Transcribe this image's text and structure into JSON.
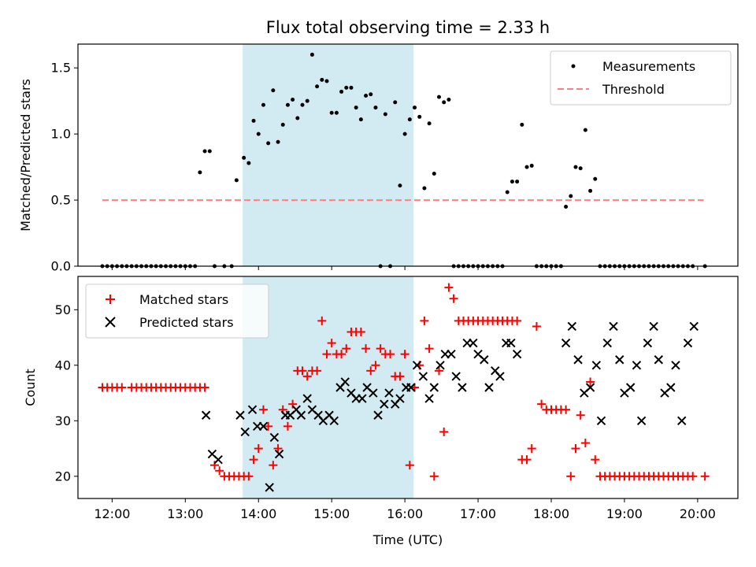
{
  "chart_data": {
    "title": "Flux total observing time = 2.33 h",
    "xlabel": "Time (UTC)",
    "x_unit": "hours UTC",
    "xlim": [
      "11:32",
      "20:33"
    ],
    "xtick_labels": [
      "12:00",
      "13:00",
      "14:00",
      "15:00",
      "16:00",
      "17:00",
      "18:00",
      "19:00",
      "20:00"
    ],
    "shaded_interval": [
      "13:47",
      "16:07"
    ],
    "shade_color": "#add8e6",
    "panels": [
      {
        "type": "scatter",
        "ylabel": "Matched/Predicted stars",
        "ylim": [
          0,
          1.68
        ],
        "ytick_labels": [
          "0.0",
          "0.5",
          "1.0",
          "1.5"
        ],
        "legend_position": "upper right",
        "threshold": {
          "name": "Threshold",
          "value": 0.5,
          "x_range": [
            "11:52",
            "20:05"
          ],
          "color": "#ff8080",
          "style": "dashed"
        },
        "series": [
          {
            "name": "Measurements",
            "color": "#000000",
            "marker": "dot",
            "x": [
              "11:52",
              "11:56",
              "12:00",
              "12:04",
              "12:08",
              "12:12",
              "12:16",
              "12:20",
              "12:24",
              "12:28",
              "12:32",
              "12:36",
              "12:40",
              "12:44",
              "12:48",
              "12:52",
              "12:56",
              "13:00",
              "13:04",
              "13:08",
              "13:12",
              "13:16",
              "13:20",
              "13:24",
              "13:32",
              "13:38",
              "13:42",
              "13:48",
              "13:52",
              "13:56",
              "14:00",
              "14:04",
              "14:08",
              "14:12",
              "14:16",
              "14:20",
              "14:24",
              "14:28",
              "14:32",
              "14:36",
              "14:40",
              "14:44",
              "14:48",
              "14:52",
              "14:56",
              "15:00",
              "15:04",
              "15:08",
              "15:12",
              "15:16",
              "15:20",
              "15:24",
              "15:28",
              "15:32",
              "15:36",
              "15:40",
              "15:44",
              "15:48",
              "15:52",
              "15:56",
              "16:00",
              "16:04",
              "16:08",
              "16:12",
              "16:16",
              "16:20",
              "16:24",
              "16:28",
              "16:32",
              "16:36",
              "16:40",
              "16:44",
              "16:48",
              "16:52",
              "16:56",
              "17:00",
              "17:04",
              "17:08",
              "17:12",
              "17:16",
              "17:20",
              "17:24",
              "17:28",
              "17:32",
              "17:36",
              "17:40",
              "17:44",
              "17:48",
              "17:52",
              "17:56",
              "18:00",
              "18:04",
              "18:08",
              "18:12",
              "18:16",
              "18:20",
              "18:24",
              "18:28",
              "18:32",
              "18:36",
              "18:40",
              "18:44",
              "18:48",
              "18:52",
              "18:56",
              "19:00",
              "19:04",
              "19:08",
              "19:12",
              "19:16",
              "19:20",
              "19:24",
              "19:28",
              "19:32",
              "19:36",
              "19:40",
              "19:44",
              "19:48",
              "19:52",
              "19:56",
              "20:06"
            ],
            "y": [
              0,
              0,
              0,
              0,
              0,
              0,
              0,
              0,
              0,
              0,
              0,
              0,
              0,
              0,
              0,
              0,
              0,
              0,
              0,
              0,
              0.71,
              0.87,
              0.87,
              0,
              0,
              0,
              0.65,
              0.82,
              0.78,
              1.1,
              1.0,
              1.22,
              0.93,
              1.33,
              0.94,
              1.07,
              1.22,
              1.26,
              1.12,
              1.22,
              1.25,
              1.6,
              1.36,
              1.41,
              1.4,
              1.16,
              1.16,
              1.32,
              1.35,
              1.35,
              1.2,
              1.11,
              1.29,
              1.3,
              1.2,
              0,
              1.15,
              0,
              1.24,
              0.61,
              1.0,
              1.11,
              1.2,
              1.13,
              0.59,
              1.08,
              0.7,
              1.28,
              1.24,
              1.26,
              0,
              0,
              0,
              0,
              0,
              0,
              0,
              0,
              0,
              0,
              0,
              0.56,
              0.64,
              0.64,
              1.07,
              0.75,
              0.76,
              0,
              0,
              0,
              0,
              0,
              0,
              0.45,
              0.53,
              0.75,
              0.74,
              1.03,
              0.57,
              0.66,
              0,
              0,
              0,
              0,
              0,
              0,
              0,
              0,
              0,
              0,
              0,
              0,
              0,
              0,
              0,
              0,
              0,
              0,
              0,
              0,
              0
            ]
          }
        ]
      },
      {
        "type": "scatter",
        "ylabel": "Count",
        "ylim": [
          16,
          56
        ],
        "ytick_labels": [
          "20",
          "30",
          "40",
          "50"
        ],
        "legend_position": "upper left",
        "series": [
          {
            "name": "Matched stars",
            "color": "#ff0000",
            "marker": "plus",
            "x": [
              "11:52",
              "11:56",
              "12:00",
              "12:04",
              "12:08",
              "12:16",
              "12:20",
              "12:24",
              "12:28",
              "12:32",
              "12:36",
              "12:40",
              "12:44",
              "12:48",
              "12:52",
              "12:56",
              "13:00",
              "13:04",
              "13:08",
              "13:12",
              "13:16",
              "13:24",
              "13:28",
              "13:32",
              "13:36",
              "13:40",
              "13:44",
              "13:48",
              "13:52",
              "13:56",
              "14:00",
              "14:04",
              "14:08",
              "14:12",
              "14:16",
              "14:20",
              "14:24",
              "14:28",
              "14:32",
              "14:36",
              "14:40",
              "14:44",
              "14:48",
              "14:52",
              "14:56",
              "15:00",
              "15:04",
              "15:08",
              "15:12",
              "15:16",
              "15:20",
              "15:24",
              "15:28",
              "15:32",
              "15:36",
              "15:40",
              "15:44",
              "15:48",
              "15:52",
              "15:56",
              "16:00",
              "16:04",
              "16:08",
              "16:12",
              "16:16",
              "16:20",
              "16:24",
              "16:28",
              "16:32",
              "16:36",
              "16:40",
              "16:44",
              "16:48",
              "16:52",
              "16:56",
              "17:00",
              "17:04",
              "17:08",
              "17:12",
              "17:16",
              "17:20",
              "17:24",
              "17:28",
              "17:32",
              "17:36",
              "17:40",
              "17:44",
              "17:48",
              "17:52",
              "17:56",
              "18:00",
              "18:04",
              "18:08",
              "18:12",
              "18:16",
              "18:20",
              "18:24",
              "18:28",
              "18:32",
              "18:36",
              "18:40",
              "18:44",
              "18:48",
              "18:52",
              "18:56",
              "19:00",
              "19:04",
              "19:08",
              "19:12",
              "19:16",
              "19:20",
              "19:24",
              "19:28",
              "19:32",
              "19:36",
              "19:40",
              "19:44",
              "19:48",
              "19:52",
              "19:56",
              "20:06"
            ],
            "y": [
              36,
              36,
              36,
              36,
              36,
              36,
              36,
              36,
              36,
              36,
              36,
              36,
              36,
              36,
              36,
              36,
              36,
              36,
              36,
              36,
              36,
              22,
              21,
              20,
              20,
              20,
              20,
              20,
              20,
              23,
              25,
              32,
              29,
              22,
              25,
              32,
              29,
              33,
              39,
              39,
              38,
              39,
              39,
              48,
              42,
              44,
              42,
              42,
              43,
              46,
              46,
              46,
              43,
              39,
              40,
              43,
              42,
              42,
              38,
              38,
              42,
              22,
              36,
              40,
              48,
              43,
              20,
              39,
              28,
              54,
              52,
              48,
              48,
              48,
              48,
              48,
              48,
              48,
              48,
              48,
              48,
              48,
              48,
              48,
              23,
              23,
              25,
              47,
              33,
              32,
              32,
              32,
              32,
              32,
              20,
              25,
              31,
              26,
              37,
              23,
              20,
              20,
              20,
              20,
              20,
              20,
              20,
              20,
              20,
              20,
              20,
              20,
              20,
              20,
              20,
              20,
              20,
              20,
              20,
              20,
              20
            ]
          },
          {
            "name": "Predicted stars",
            "color": "#000000",
            "marker": "x",
            "x": [
              "13:17",
              "13:22",
              "13:27",
              "13:45",
              "13:49",
              "13:55",
              "13:59",
              "14:04",
              "14:09",
              "14:13",
              "14:17",
              "14:22",
              "14:26",
              "14:31",
              "14:35",
              "14:40",
              "14:44",
              "14:49",
              "14:53",
              "14:58",
              "15:02",
              "15:07",
              "15:11",
              "15:16",
              "15:20",
              "15:25",
              "15:29",
              "15:34",
              "15:38",
              "15:43",
              "15:47",
              "15:52",
              "15:56",
              "16:01",
              "16:05",
              "16:10",
              "16:15",
              "16:20",
              "16:24",
              "16:29",
              "16:33",
              "16:38",
              "16:42",
              "16:47",
              "16:51",
              "16:56",
              "17:00",
              "17:05",
              "17:09",
              "17:14",
              "17:18",
              "17:23",
              "17:27",
              "17:32",
              "18:12",
              "18:17",
              "18:22",
              "18:27",
              "18:32",
              "18:37",
              "18:41",
              "18:46",
              "18:51",
              "18:56",
              "19:00",
              "19:05",
              "19:10",
              "19:14",
              "19:19",
              "19:24",
              "19:28",
              "19:33",
              "19:38",
              "19:42",
              "19:47",
              "19:52",
              "19:57"
            ],
            "y": [
              31,
              24,
              23,
              31,
              28,
              32,
              29,
              29,
              18,
              27,
              24,
              31,
              31,
              32,
              31,
              34,
              32,
              31,
              30,
              31,
              30,
              36,
              37,
              35,
              34,
              34,
              36,
              35,
              31,
              33,
              35,
              33,
              34,
              36,
              36,
              40,
              38,
              34,
              36,
              40,
              42,
              42,
              38,
              36,
              44,
              44,
              42,
              41,
              36,
              39,
              38,
              44,
              44,
              42,
              44,
              47,
              41,
              35,
              36,
              40,
              30,
              44,
              47,
              41,
              35,
              36,
              40,
              30,
              44,
              47,
              41,
              35,
              36,
              40,
              30,
              44,
              47
            ]
          }
        ]
      }
    ]
  }
}
